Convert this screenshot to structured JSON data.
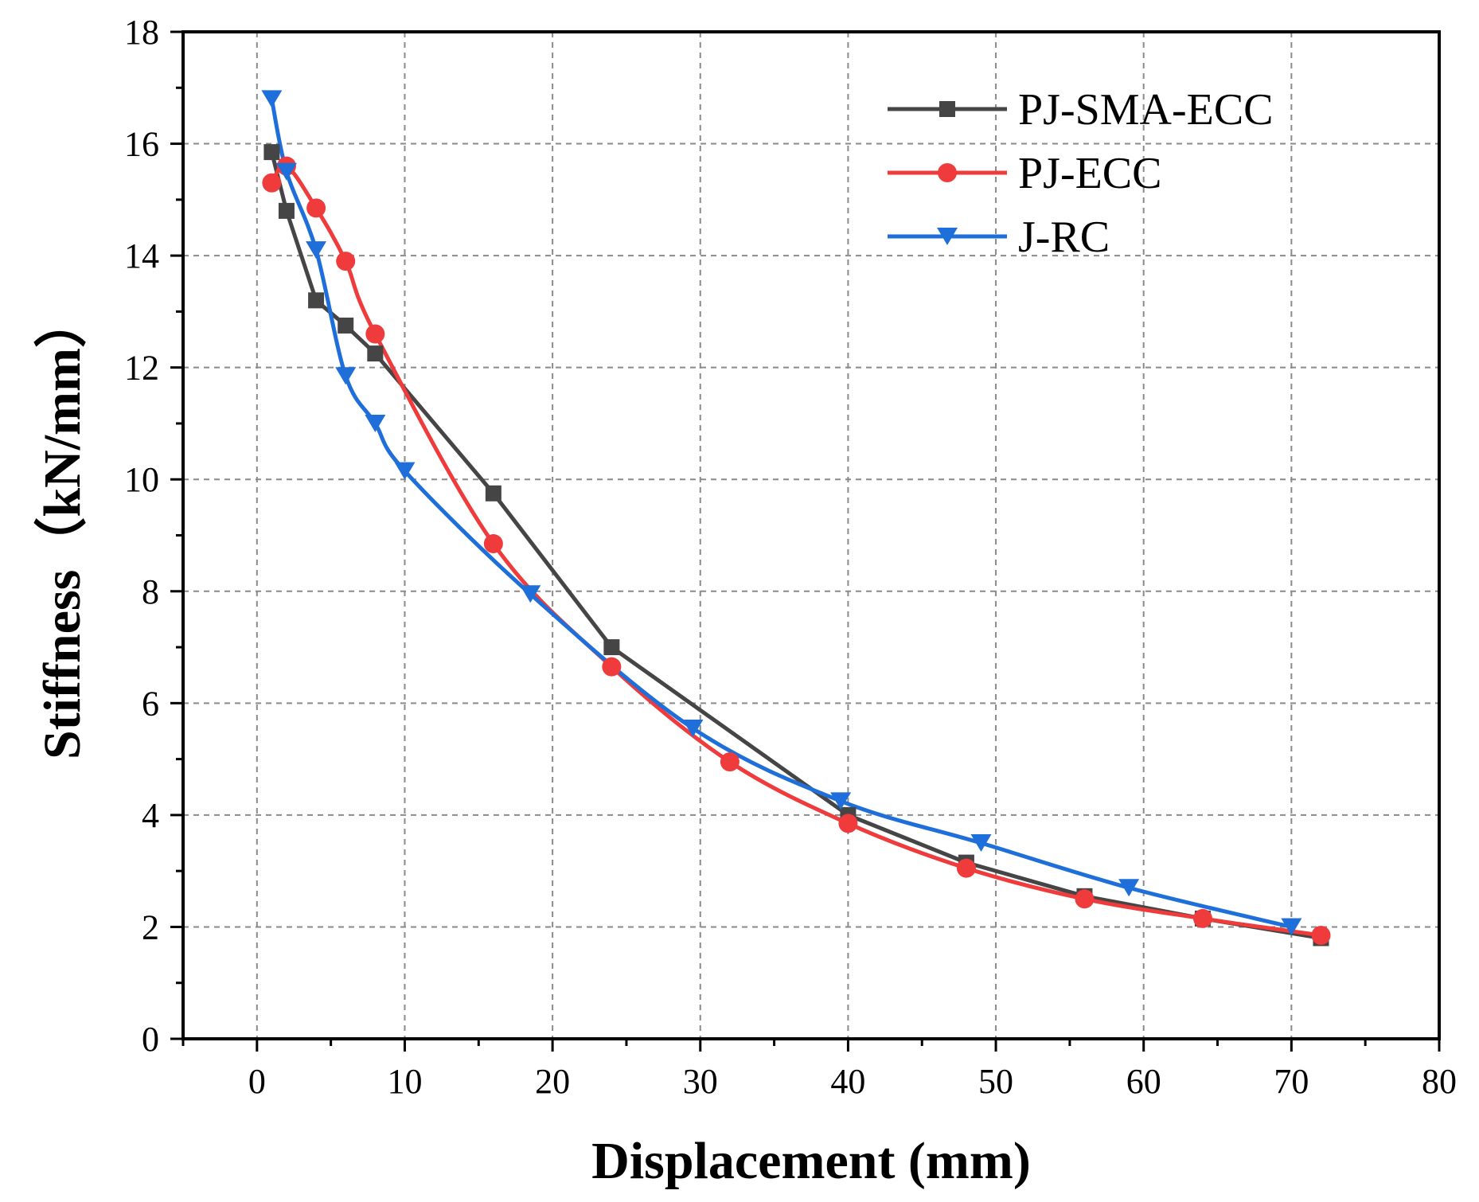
{
  "chart_data": {
    "type": "line",
    "title": "",
    "xlabel": "Displacement (mm)",
    "ylabel": "Stiffness（kN/mm）",
    "xlim": [
      -5,
      80
    ],
    "ylim": [
      0,
      18
    ],
    "xticks": [
      0,
      10,
      20,
      30,
      40,
      50,
      60,
      70,
      80
    ],
    "yticks": [
      0,
      2,
      4,
      6,
      8,
      10,
      12,
      14,
      16,
      18
    ],
    "grid": true,
    "legend_position": "top-right",
    "series": [
      {
        "name": "PJ-SMA-ECC",
        "color": "#454545",
        "marker": "square",
        "smooth": false,
        "x": [
          1,
          2,
          4,
          6,
          8,
          16,
          24,
          40,
          48,
          56,
          64,
          72
        ],
        "y": [
          15.85,
          14.8,
          13.2,
          12.75,
          12.25,
          9.75,
          7.0,
          4.0,
          3.15,
          2.55,
          2.15,
          1.8
        ]
      },
      {
        "name": "PJ-ECC",
        "color": "#ef3b3b",
        "marker": "circle",
        "smooth": true,
        "x": [
          1,
          2,
          4,
          6,
          8,
          16,
          24,
          32,
          40,
          48,
          56,
          64,
          72
        ],
        "y": [
          15.3,
          15.6,
          14.85,
          13.9,
          12.6,
          8.85,
          6.65,
          4.95,
          3.85,
          3.05,
          2.5,
          2.15,
          1.85
        ]
      },
      {
        "name": "J-RC",
        "color": "#1e6fd9",
        "marker": "triangle-down",
        "smooth": true,
        "x": [
          1,
          2,
          4,
          6,
          8,
          10,
          18.5,
          29.5,
          39.5,
          49,
          59,
          70
        ],
        "y": [
          16.8,
          15.5,
          14.1,
          11.85,
          11.0,
          10.15,
          7.95,
          5.55,
          4.25,
          3.5,
          2.7,
          2.0
        ]
      }
    ]
  }
}
